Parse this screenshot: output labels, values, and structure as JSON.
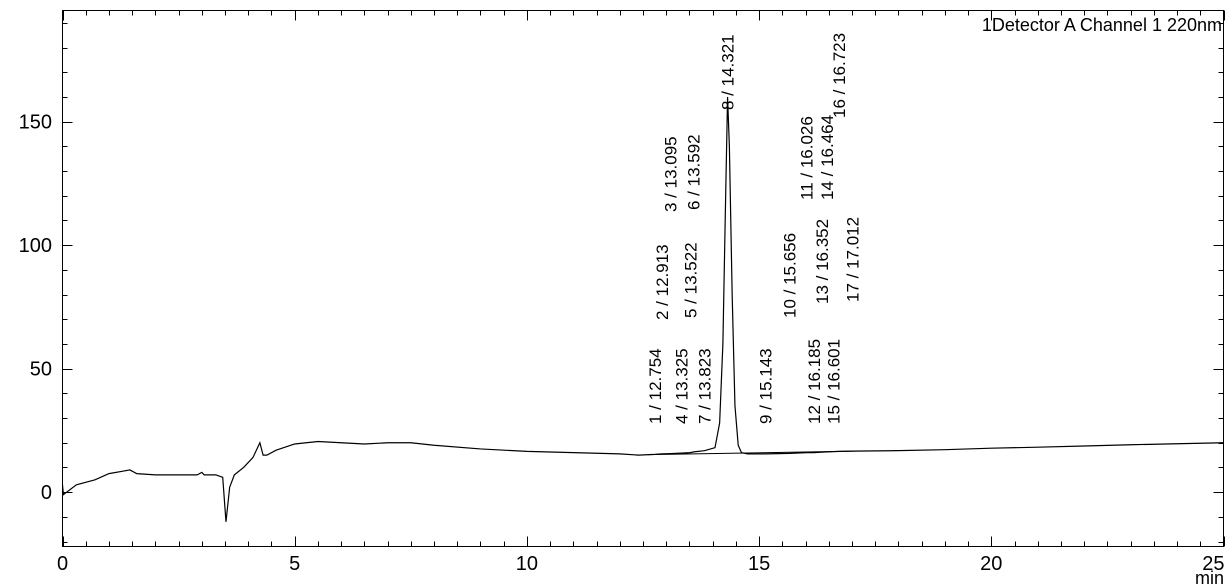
{
  "chart_data": {
    "type": "line",
    "title": "",
    "xlabel": "min",
    "ylabel": "",
    "xlim": [
      0,
      25
    ],
    "ylim": [
      -22,
      195
    ],
    "x_ticks": [
      "0",
      "5",
      "10",
      "15",
      "20",
      "25"
    ],
    "y_ticks": [
      "0",
      "50",
      "100",
      "150"
    ],
    "detector_label": "1Detector A Channel 1 220nm",
    "series": [
      {
        "points": [
          [
            0.0,
            3
          ],
          [
            0.02,
            -1
          ],
          [
            0.3,
            3
          ],
          [
            0.7,
            5
          ],
          [
            1.0,
            7.5
          ],
          [
            1.3,
            8.5
          ],
          [
            1.45,
            9
          ],
          [
            1.6,
            7.5
          ],
          [
            2.0,
            7
          ],
          [
            2.5,
            7
          ],
          [
            2.9,
            7
          ],
          [
            3.0,
            8
          ],
          [
            3.05,
            7
          ],
          [
            3.3,
            7
          ],
          [
            3.45,
            6
          ],
          [
            3.52,
            -12
          ],
          [
            3.6,
            2
          ],
          [
            3.7,
            7
          ],
          [
            3.9,
            10
          ],
          [
            4.1,
            14
          ],
          [
            4.25,
            20
          ],
          [
            4.32,
            15
          ],
          [
            4.4,
            15
          ],
          [
            4.6,
            17
          ],
          [
            5.0,
            19.5
          ],
          [
            5.5,
            20.5
          ],
          [
            6.0,
            20
          ],
          [
            6.5,
            19.5
          ],
          [
            7.0,
            20
          ],
          [
            7.5,
            20
          ],
          [
            8.0,
            19
          ],
          [
            9.0,
            17.5
          ],
          [
            10.0,
            16.5
          ],
          [
            11.0,
            16
          ],
          [
            12.0,
            15.5
          ],
          [
            12.4,
            15
          ],
          [
            12.754,
            15.3
          ],
          [
            12.913,
            15.5
          ],
          [
            13.095,
            15.6
          ],
          [
            13.325,
            15.8
          ],
          [
            13.522,
            16
          ],
          [
            13.592,
            16.3
          ],
          [
            13.823,
            16.8
          ],
          [
            14.05,
            18
          ],
          [
            14.15,
            28
          ],
          [
            14.22,
            60
          ],
          [
            14.28,
            120
          ],
          [
            14.321,
            160
          ],
          [
            14.36,
            140
          ],
          [
            14.42,
            80
          ],
          [
            14.48,
            35
          ],
          [
            14.55,
            19
          ],
          [
            14.62,
            16
          ],
          [
            14.75,
            15.5
          ],
          [
            15.143,
            15.5
          ],
          [
            15.656,
            15.7
          ],
          [
            16.026,
            16
          ],
          [
            16.185,
            16
          ],
          [
            16.352,
            16.2
          ],
          [
            16.464,
            16.3
          ],
          [
            16.601,
            16.4
          ],
          [
            16.723,
            16.5
          ],
          [
            17.012,
            16.6
          ],
          [
            18.0,
            16.8
          ],
          [
            19.0,
            17.2
          ],
          [
            20.0,
            17.8
          ],
          [
            21.0,
            18.2
          ],
          [
            22.0,
            18.7
          ],
          [
            23.0,
            19.2
          ],
          [
            24.0,
            19.6
          ],
          [
            25.0,
            20
          ]
        ]
      }
    ],
    "peaks": [
      {
        "label": "1 / 12.754",
        "rt": 12.754
      },
      {
        "label": "2 / 12.913",
        "rt": 12.913
      },
      {
        "label": "3 / 13.095",
        "rt": 13.095
      },
      {
        "label": "4 / 13.325",
        "rt": 13.325
      },
      {
        "label": "5 / 13.522",
        "rt": 13.522
      },
      {
        "label": "6 / 13.592",
        "rt": 13.592
      },
      {
        "label": "7 / 13.823",
        "rt": 13.823
      },
      {
        "label": "8 / 14.321",
        "rt": 14.321
      },
      {
        "label": "9 / 15.143",
        "rt": 15.143
      },
      {
        "label": "10 / 15.656",
        "rt": 15.656
      },
      {
        "label": "11 / 16.026",
        "rt": 16.026
      },
      {
        "label": "12 / 16.185",
        "rt": 16.185
      },
      {
        "label": "13 / 16.352",
        "rt": 16.352
      },
      {
        "label": "14 / 16.464",
        "rt": 16.464
      },
      {
        "label": "15 / 16.601",
        "rt": 16.601
      },
      {
        "label": "16 / 16.723",
        "rt": 16.723
      },
      {
        "label": "17 / 17.012",
        "rt": 17.012
      }
    ]
  }
}
